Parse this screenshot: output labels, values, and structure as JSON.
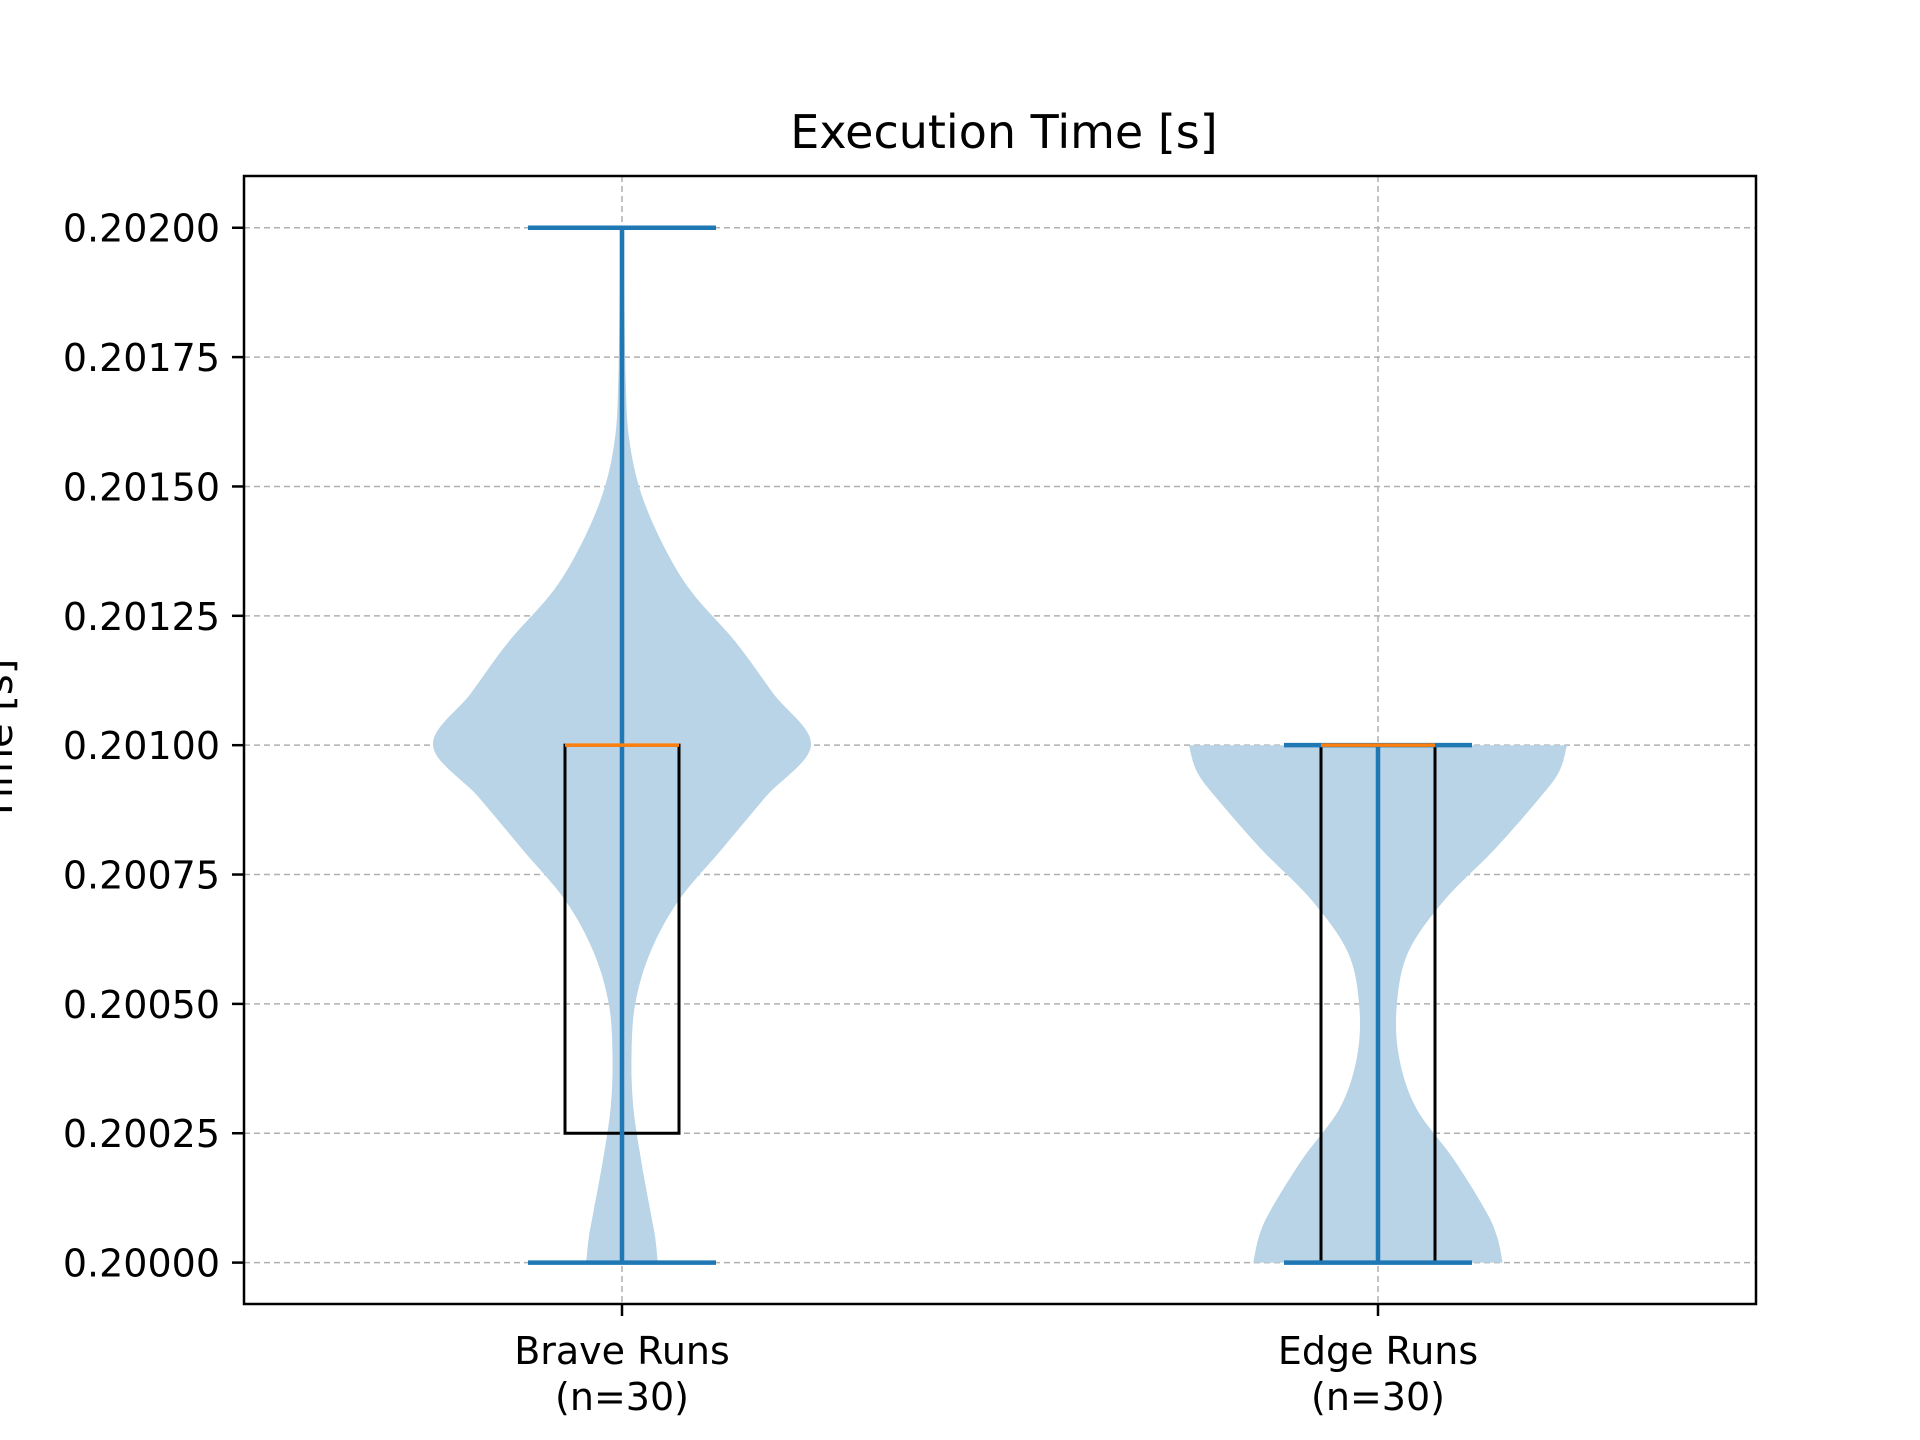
{
  "chart_data": {
    "type": "violin",
    "title": "Execution Time [s]",
    "ylabel": "Time [s]",
    "xlabel": "",
    "ylim": [
      0.19992,
      0.2021
    ],
    "yticks": [
      0.2,
      0.20025,
      0.2005,
      0.20075,
      0.201,
      0.20125,
      0.2015,
      0.20175,
      0.202
    ],
    "ytick_labels": [
      "0.20000",
      "0.20025",
      "0.20050",
      "0.20075",
      "0.20100",
      "0.20125",
      "0.20150",
      "0.20175",
      "0.20200"
    ],
    "grid": true,
    "categories": [
      {
        "label": "Brave Runs",
        "sub": "(n=30)"
      },
      {
        "label": "Edge Runs",
        "sub": "(n=30)"
      }
    ],
    "series": [
      {
        "min": 0.2,
        "max": 0.202,
        "median": 0.201,
        "q1": 0.20025,
        "q3": 0.201,
        "density": [
          [
            0.2,
            0.19
          ],
          [
            0.20005,
            0.175
          ],
          [
            0.2001,
            0.15
          ],
          [
            0.2002,
            0.1
          ],
          [
            0.2003,
            0.06
          ],
          [
            0.2004,
            0.05
          ],
          [
            0.2005,
            0.07
          ],
          [
            0.2006,
            0.15
          ],
          [
            0.2007,
            0.3
          ],
          [
            0.2008,
            0.53
          ],
          [
            0.2009,
            0.76
          ],
          [
            0.201,
            1.0
          ],
          [
            0.2011,
            0.8
          ],
          [
            0.2012,
            0.6
          ],
          [
            0.2013,
            0.36
          ],
          [
            0.2014,
            0.2
          ],
          [
            0.2015,
            0.09
          ],
          [
            0.2016,
            0.035
          ],
          [
            0.2017,
            0.02
          ],
          [
            0.2018,
            0.015
          ],
          [
            0.2019,
            0.012
          ],
          [
            0.202,
            0.012
          ]
        ]
      },
      {
        "min": 0.2,
        "max": 0.201,
        "median": 0.201,
        "q1": 0.2,
        "q3": 0.201,
        "density": [
          [
            0.2,
            0.66
          ],
          [
            0.20005,
            0.63
          ],
          [
            0.2001,
            0.57
          ],
          [
            0.2002,
            0.4
          ],
          [
            0.2003,
            0.2
          ],
          [
            0.2004,
            0.11
          ],
          [
            0.2005,
            0.1
          ],
          [
            0.2006,
            0.16
          ],
          [
            0.2007,
            0.35
          ],
          [
            0.2008,
            0.62
          ],
          [
            0.2009,
            0.86
          ],
          [
            0.20095,
            0.96
          ],
          [
            0.201,
            1.0
          ]
        ]
      }
    ],
    "colors": {
      "violin_fill": "#b9d4e7",
      "lines": "#1f77b4",
      "median": "#ff7f0e",
      "box": "#000000",
      "grid": "#b0b0b0"
    }
  }
}
